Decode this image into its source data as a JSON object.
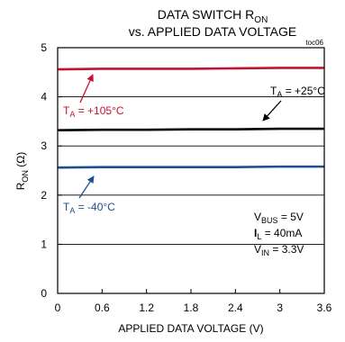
{
  "chart_data": {
    "type": "line",
    "title": {
      "main": "DATA SWITCH R",
      "main_sub": "ON",
      "line2": "vs. APPLIED DATA VOLTAGE"
    },
    "figure_id": "toc06",
    "xlabel": "APPLIED DATA VOLTAGE (V)",
    "ylabel": {
      "main": "R",
      "sub": "ON",
      "unit": " (Ω)"
    },
    "xlim": [
      0,
      3.6
    ],
    "ylim": [
      0,
      5
    ],
    "x_ticks": [
      0,
      0.6,
      1.2,
      1.8,
      2.4,
      3,
      3.6
    ],
    "x_tick_labels": [
      "0",
      "0.6",
      "1.2",
      "1.8",
      "2.4",
      "3",
      "3.6"
    ],
    "y_ticks": [
      0,
      1,
      2,
      3,
      4,
      5
    ],
    "y_tick_labels": [
      "0",
      "1",
      "2",
      "3",
      "4",
      "5"
    ],
    "grid": "horizontal",
    "series": [
      {
        "label": {
          "pre": "T",
          "sub": "A",
          "post": " = +105°C"
        },
        "color": "#c8102e",
        "x": [
          0,
          0.6,
          1.2,
          1.8,
          2.4,
          3,
          3.6
        ],
        "y": [
          4.56,
          4.57,
          4.57,
          4.57,
          4.58,
          4.59,
          4.59
        ]
      },
      {
        "label": {
          "pre": "T",
          "sub": "A",
          "post": " = +25°C"
        },
        "color": "#000000",
        "x": [
          0,
          0.6,
          1.2,
          1.8,
          2.4,
          3,
          3.6
        ],
        "y": [
          3.32,
          3.33,
          3.33,
          3.34,
          3.34,
          3.35,
          3.35
        ]
      },
      {
        "label": {
          "pre": "T",
          "sub": "A",
          "post": " = -40°C"
        },
        "color": "#1f4e8c",
        "x": [
          0,
          0.6,
          1.2,
          1.8,
          2.4,
          3,
          3.6
        ],
        "y": [
          2.56,
          2.57,
          2.57,
          2.57,
          2.57,
          2.58,
          2.58
        ]
      }
    ],
    "conditions": [
      {
        "pre": "V",
        "sub": "BUS",
        "post": " = 5V"
      },
      {
        "pre": "I",
        "sub": "L",
        "post": " = 40mA"
      },
      {
        "pre": "V",
        "sub": "IN",
        "post": " = 3.3V"
      }
    ]
  }
}
